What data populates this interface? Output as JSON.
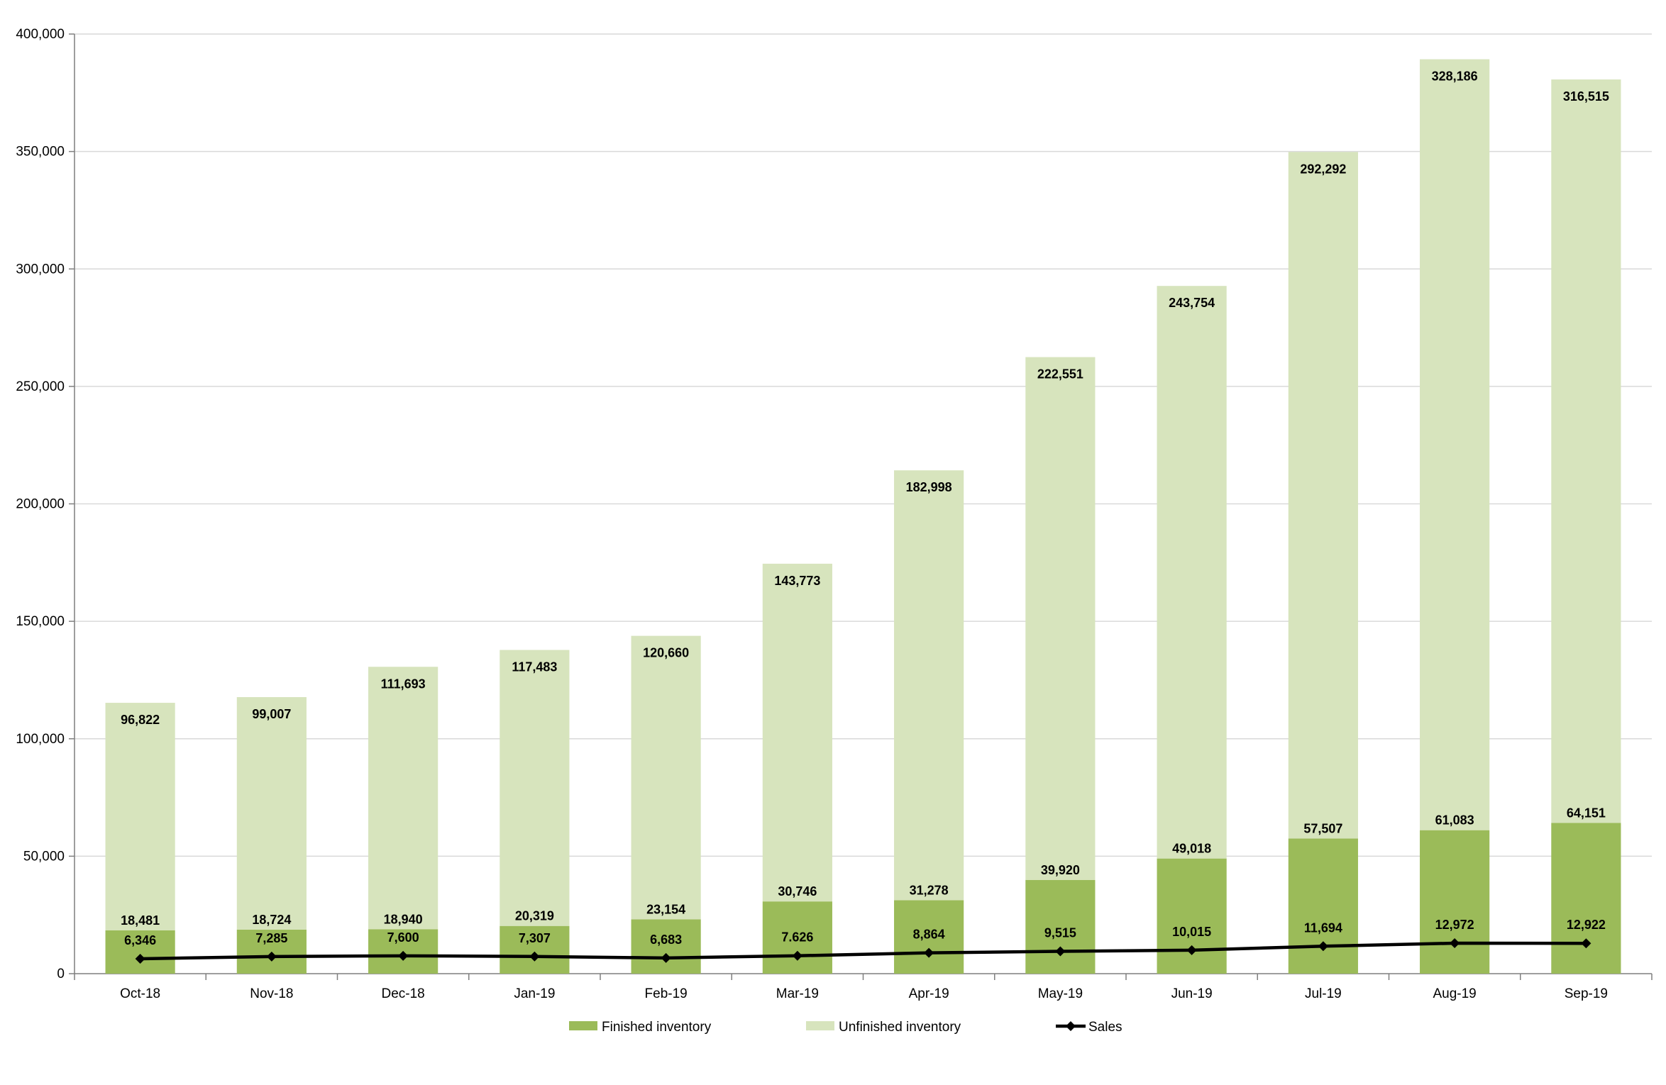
{
  "chart_data": {
    "type": "bar",
    "stacked": true,
    "title": "",
    "xlabel": "",
    "ylabel": "",
    "ylim": [
      0,
      400000
    ],
    "yticks": [
      0,
      50000,
      100000,
      150000,
      200000,
      250000,
      300000,
      350000,
      400000
    ],
    "ytick_labels": [
      "0",
      "50,000",
      "100,000",
      "150,000",
      "200,000",
      "250,000",
      "300,000",
      "350,000",
      "400,000"
    ],
    "grid": true,
    "legend_position": "bottom",
    "categories": [
      "Oct-18",
      "Nov-18",
      "Dec-18",
      "Jan-19",
      "Feb-19",
      "Mar-19",
      "Apr-19",
      "May-19",
      "Jun-19",
      "Jul-19",
      "Aug-19",
      "Sep-19"
    ],
    "series": [
      {
        "name": "Finished inventory",
        "kind": "bar",
        "color": "#9bbb59",
        "values": [
          18481,
          18724,
          18940,
          20319,
          23154,
          30746,
          31278,
          39920,
          49018,
          57507,
          61083,
          64151
        ],
        "labels": [
          "18,481",
          "18,724",
          "18,940",
          "20,319",
          "23,154",
          "30,746",
          "31,278",
          "39,920",
          "49,018",
          "57,507",
          "61,083",
          "64,151"
        ]
      },
      {
        "name": "Unfinished inventory",
        "kind": "bar",
        "color": "#d7e4bd",
        "values": [
          96822,
          99007,
          111693,
          117483,
          120660,
          143773,
          182998,
          222551,
          243754,
          292292,
          328186,
          316515
        ],
        "labels": [
          "96,822",
          "99,007",
          "111,693",
          "117,483",
          "120,660",
          "143,773",
          "182,998",
          "222,551",
          "243,754",
          "292,292",
          "328,186",
          "316,515"
        ]
      },
      {
        "name": "Sales",
        "kind": "line",
        "color": "#000000",
        "values": [
          6346,
          7285,
          7600,
          7307,
          6683,
          7626,
          8864,
          9515,
          10015,
          11694,
          12972,
          12922
        ],
        "labels": [
          "6,346",
          "7,285",
          "7,600",
          "7,307",
          "6,683",
          "7.626",
          "8,864",
          "9,515",
          "10,015",
          "11,694",
          "12,972",
          "12,922"
        ]
      }
    ]
  }
}
